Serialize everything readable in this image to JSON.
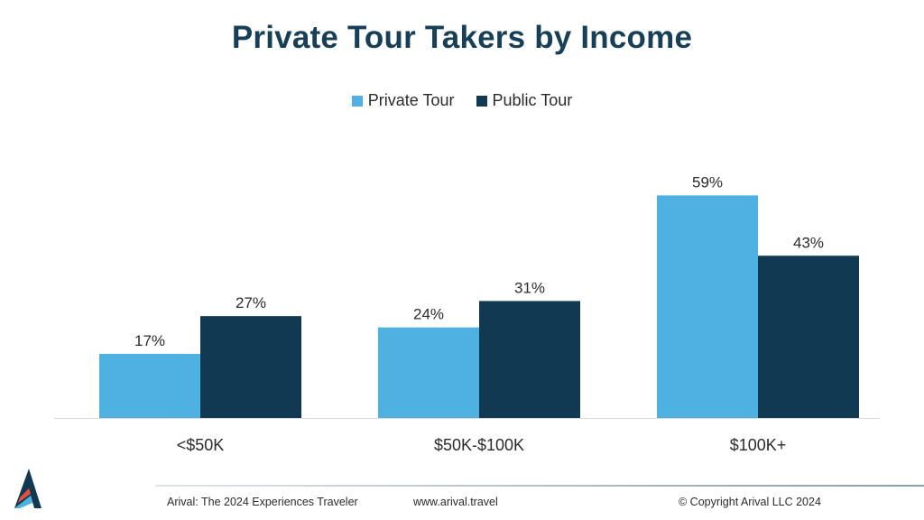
{
  "colors": {
    "private": "#4fb0e2",
    "public": "#113a52",
    "title": "#173f58"
  },
  "chart_data": {
    "type": "bar",
    "title": "Private Tour Takers by Income",
    "xlabel": "",
    "ylabel": "",
    "ylim": [
      0,
      65
    ],
    "grid": false,
    "legend_position": "top-center",
    "categories": [
      "<$50K",
      "$50K-$100K",
      "$100K+"
    ],
    "series": [
      {
        "name": "Private Tour",
        "values": [
          17,
          24,
          59
        ],
        "labels": [
          "17%",
          "24%",
          "59%"
        ]
      },
      {
        "name": "Public Tour",
        "values": [
          27,
          31,
          43
        ],
        "labels": [
          "27%",
          "31%",
          "43%"
        ]
      }
    ]
  },
  "footer": {
    "report": "Arival: The 2024 Experiences Traveler",
    "url": "www.arival.travel",
    "copyright": "© Copyright Arival LLC 2024"
  },
  "logo": {
    "icon": "arival-logo-icon"
  }
}
